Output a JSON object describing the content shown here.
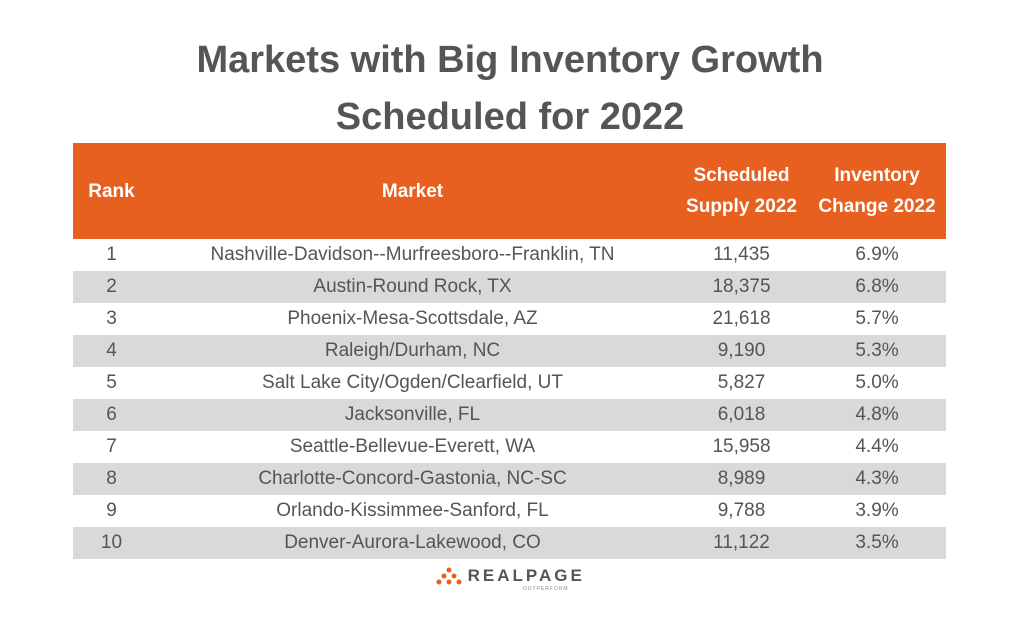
{
  "header": {
    "title_lines": [
      "Markets with Big Inventory Growth",
      "Scheduled for 2022"
    ]
  },
  "table": {
    "columns": [
      "Rank",
      "Market",
      "Scheduled Supply 2022",
      "Inventory Change 2022"
    ],
    "rows": [
      [
        "1",
        "Nashville-Davidson--Murfreesboro--Franklin, TN",
        "11,435",
        "6.9%"
      ],
      [
        "2",
        "Austin-Round Rock, TX",
        "18,375",
        "6.8%"
      ],
      [
        "3",
        "Phoenix-Mesa-Scottsdale, AZ",
        "21,618",
        "5.7%"
      ],
      [
        "4",
        "Raleigh/Durham, NC",
        "9,190",
        "5.3%"
      ],
      [
        "5",
        "Salt Lake City/Ogden/Clearfield, UT",
        "5,827",
        "5.0%"
      ],
      [
        "6",
        "Jacksonville, FL",
        "6,018",
        "4.8%"
      ],
      [
        "7",
        "Seattle-Bellevue-Everett, WA",
        "15,958",
        "4.4%"
      ],
      [
        "8",
        "Charlotte-Concord-Gastonia, NC-SC",
        "8,989",
        "4.3%"
      ],
      [
        "9",
        "Orlando-Kissimmee-Sanford, FL",
        "9,788",
        "3.9%"
      ],
      [
        "10",
        "Denver-Aurora-Lakewood, CO",
        "11,122",
        "3.5%"
      ]
    ]
  },
  "footer": {
    "logo": "REALPAGE",
    "tagline": "OUTPERFORM"
  }
}
